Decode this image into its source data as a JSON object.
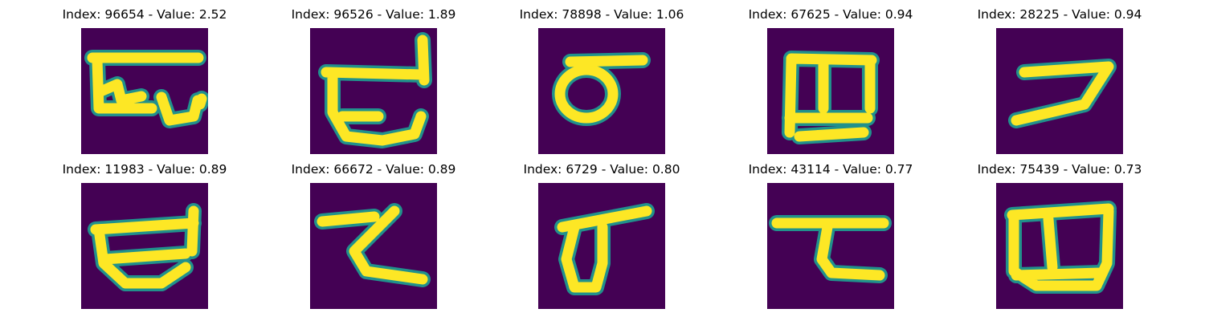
{
  "figure": {
    "colors": {
      "background": "#440154",
      "mid_teal": "#21918c",
      "light_green": "#5ec962",
      "bright_yellow": "#fde725"
    },
    "panels": [
      {
        "title": "Index: 96654 - Value: 2.52",
        "glyph": "glyph-96654"
      },
      {
        "title": "Index: 96526 - Value: 1.89",
        "glyph": "glyph-96526"
      },
      {
        "title": "Index: 78898 - Value: 1.06",
        "glyph": "glyph-78898"
      },
      {
        "title": "Index: 67625 - Value: 0.94",
        "glyph": "glyph-67625"
      },
      {
        "title": "Index: 28225 - Value: 0.94",
        "glyph": "glyph-28225"
      },
      {
        "title": "Index: 11983 - Value: 0.89",
        "glyph": "glyph-11983"
      },
      {
        "title": "Index: 66672 - Value: 0.89",
        "glyph": "glyph-66672"
      },
      {
        "title": "Index: 6729 - Value: 0.80",
        "glyph": "glyph-6729"
      },
      {
        "title": "Index: 43114 - Value: 0.77",
        "glyph": "glyph-43114"
      },
      {
        "title": "Index: 75439 - Value: 0.73",
        "glyph": "glyph-75439"
      }
    ]
  }
}
